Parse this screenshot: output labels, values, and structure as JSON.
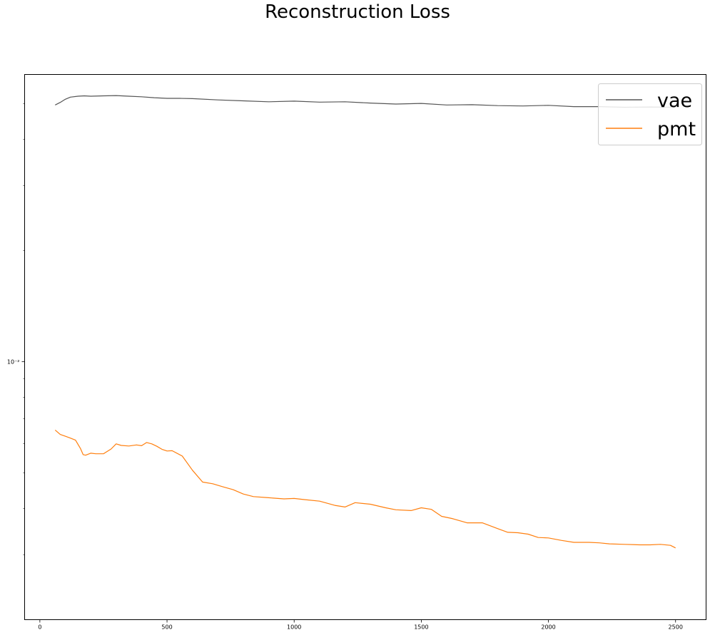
{
  "chart_data": {
    "type": "line",
    "title": "Reconstruction Loss",
    "xlabel": "",
    "ylabel": "",
    "xlim": [
      -60,
      2620
    ],
    "ylim": [
      0.002,
      0.06
    ],
    "yscale": "log",
    "grid": false,
    "legend_position": "top-right",
    "x_ticks": [
      0,
      500,
      1000,
      1500,
      2000,
      2500
    ],
    "x_tick_labels": [
      "0",
      "500",
      "1000",
      "1500",
      "2000",
      "2500"
    ],
    "y_major_ticks": [
      0.01
    ],
    "y_major_tick_labels": [
      "10⁻²"
    ],
    "y_minor_ticks": [
      0.003,
      0.004,
      0.005,
      0.006,
      0.007,
      0.008,
      0.009,
      0.02,
      0.03,
      0.04,
      0.05
    ],
    "series": [
      {
        "name": "vae",
        "color": "#555555",
        "x": [
          60,
          80,
          100,
          120,
          150,
          175,
          200,
          250,
          300,
          350,
          400,
          450,
          500,
          550,
          600,
          700,
          800,
          900,
          1000,
          1100,
          1200,
          1300,
          1400,
          1500,
          1600,
          1700,
          1800,
          1900,
          2000,
          2100,
          2200,
          2300,
          2400,
          2500
        ],
        "y": [
          0.0496,
          0.0504,
          0.0514,
          0.0521,
          0.0524,
          0.0525,
          0.0524,
          0.0525,
          0.0526,
          0.0524,
          0.0522,
          0.0519,
          0.0517,
          0.0517,
          0.0516,
          0.0512,
          0.0509,
          0.0506,
          0.0508,
          0.0505,
          0.0506,
          0.0502,
          0.0499,
          0.0501,
          0.0496,
          0.0497,
          0.0494,
          0.0493,
          0.0495,
          0.0491,
          0.0491,
          0.0489,
          0.049,
          0.0489
        ]
      },
      {
        "name": "pmt",
        "color": "#ff7f0e",
        "x": [
          60,
          80,
          100,
          120,
          140,
          160,
          170,
          180,
          200,
          220,
          250,
          280,
          300,
          320,
          350,
          380,
          400,
          420,
          440,
          460,
          480,
          500,
          520,
          560,
          600,
          640,
          680,
          720,
          760,
          800,
          840,
          900,
          960,
          1000,
          1040,
          1100,
          1160,
          1200,
          1240,
          1300,
          1360,
          1400,
          1460,
          1500,
          1540,
          1580,
          1620,
          1680,
          1740,
          1800,
          1840,
          1880,
          1920,
          1960,
          2000,
          2050,
          2100,
          2160,
          2200,
          2240,
          2300,
          2360,
          2400,
          2440,
          2480,
          2500
        ],
        "y": [
          0.00653,
          0.00635,
          0.00628,
          0.00621,
          0.00613,
          0.00581,
          0.0056,
          0.00558,
          0.00565,
          0.00563,
          0.00563,
          0.0058,
          0.00599,
          0.00593,
          0.00591,
          0.00595,
          0.00592,
          0.00604,
          0.00599,
          0.0059,
          0.00579,
          0.00573,
          0.00574,
          0.00555,
          0.00508,
          0.00472,
          0.00467,
          0.00458,
          0.0045,
          0.00438,
          0.00431,
          0.00428,
          0.00425,
          0.00426,
          0.00423,
          0.00419,
          0.00408,
          0.00404,
          0.00415,
          0.00411,
          0.00402,
          0.00397,
          0.00395,
          0.00402,
          0.00398,
          0.00381,
          0.00376,
          0.00366,
          0.00366,
          0.00353,
          0.00345,
          0.00344,
          0.00341,
          0.00334,
          0.00333,
          0.00328,
          0.00324,
          0.00324,
          0.00323,
          0.00321,
          0.0032,
          0.00319,
          0.00319,
          0.0032,
          0.00318,
          0.00313
        ]
      }
    ]
  }
}
